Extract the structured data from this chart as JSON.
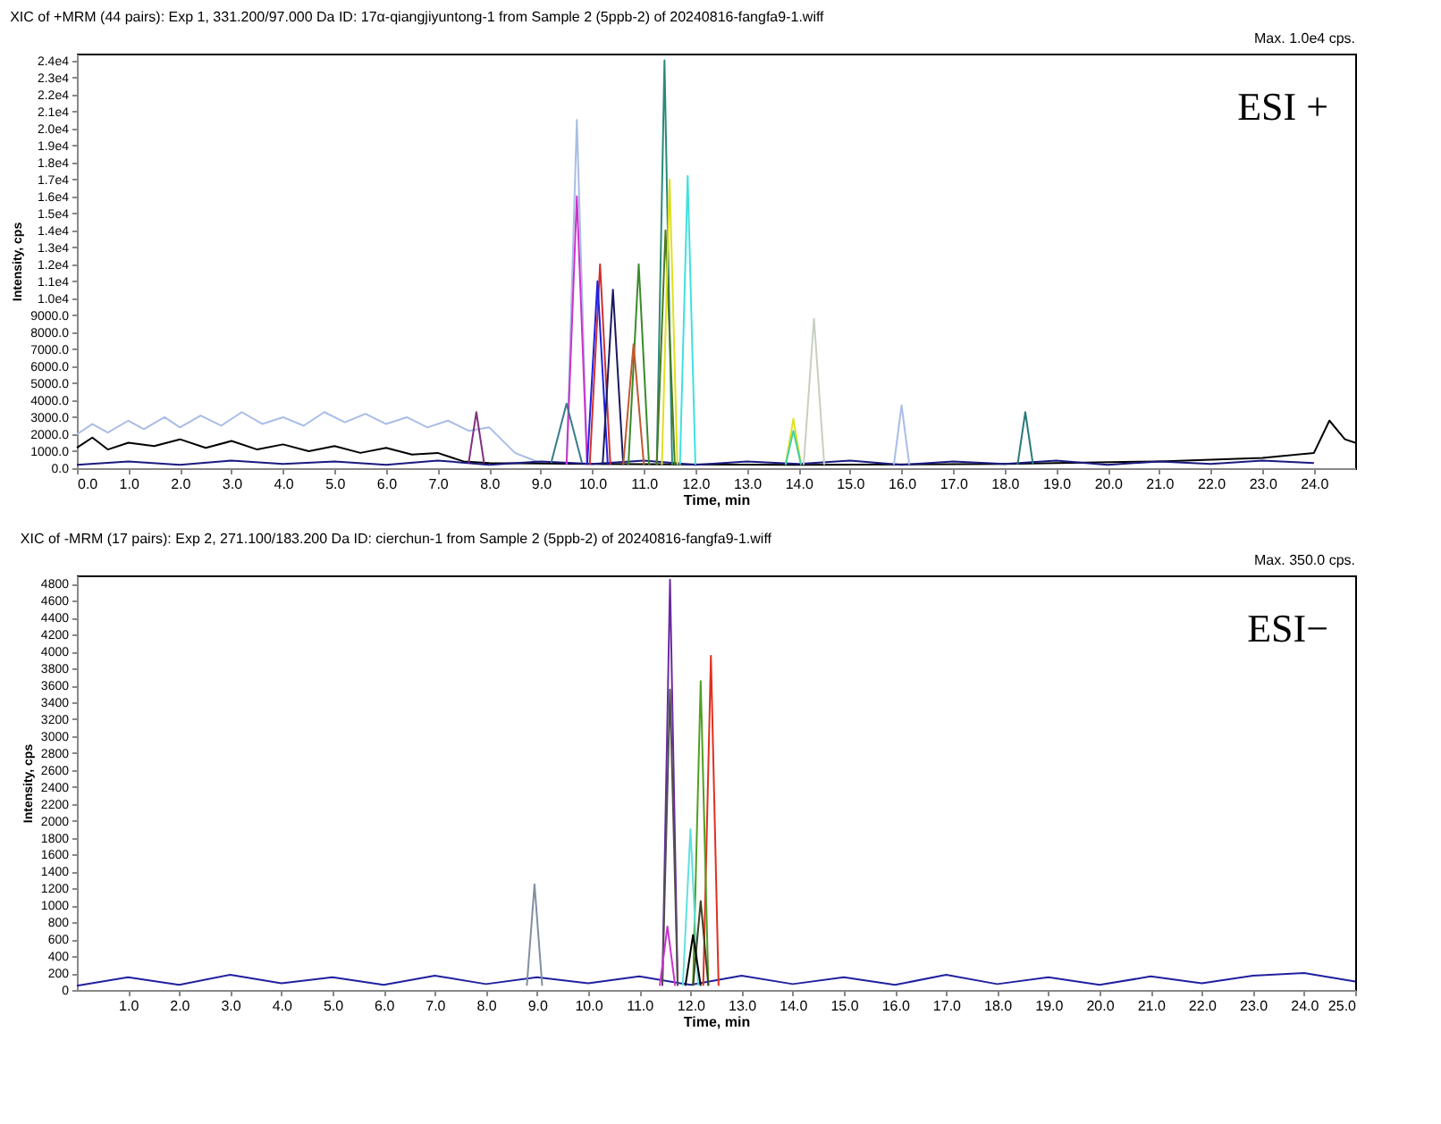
{
  "chart_data": [
    {
      "type": "line",
      "title": "XIC of +MRM (44 pairs): Exp 1, 331.200/97.000 Da ID: 17α-qiangjiyuntong-1 from Sample 2 (5ppb-2) of 20240816-fangfa9-1.wiff",
      "xlabel": "Time, min",
      "ylabel": "Intensity, cps",
      "annotations": [
        "Max. 1.0e4 cps.",
        "ESI +"
      ],
      "grid": false,
      "legend": false,
      "marker": "none",
      "line_style": "solid",
      "xlim": [
        0,
        24.8
      ],
      "ylim": [
        0,
        24400
      ],
      "xticks": [
        {
          "value": 0,
          "label": "0.0"
        },
        {
          "value": 1,
          "label": "1.0"
        },
        {
          "value": 2,
          "label": "2.0"
        },
        {
          "value": 3,
          "label": "3.0"
        },
        {
          "value": 4,
          "label": "4.0"
        },
        {
          "value": 5,
          "label": "5.0"
        },
        {
          "value": 6,
          "label": "6.0"
        },
        {
          "value": 7,
          "label": "7.0"
        },
        {
          "value": 8,
          "label": "8.0"
        },
        {
          "value": 9,
          "label": "9.0"
        },
        {
          "value": 10,
          "label": "10.0"
        },
        {
          "value": 11,
          "label": "11.0"
        },
        {
          "value": 12,
          "label": "12.0"
        },
        {
          "value": 13,
          "label": "13.0"
        },
        {
          "value": 14,
          "label": "14.0"
        },
        {
          "value": 15,
          "label": "15.0"
        },
        {
          "value": 16,
          "label": "16.0"
        },
        {
          "value": 17,
          "label": "17.0"
        },
        {
          "value": 18,
          "label": "18.0"
        },
        {
          "value": 19,
          "label": "19.0"
        },
        {
          "value": 20,
          "label": "20.0"
        },
        {
          "value": 21,
          "label": "21.0"
        },
        {
          "value": 22,
          "label": "22.0"
        },
        {
          "value": 23,
          "label": "23.0"
        },
        {
          "value": 24,
          "label": "24.0"
        }
      ],
      "yticks": [
        {
          "value": 0,
          "label": "0.0"
        },
        {
          "value": 1000,
          "label": "1000.0"
        },
        {
          "value": 2000,
          "label": "2000.0"
        },
        {
          "value": 3000,
          "label": "3000.0"
        },
        {
          "value": 4000,
          "label": "4000.0"
        },
        {
          "value": 5000,
          "label": "5000.0"
        },
        {
          "value": 6000,
          "label": "6000.0"
        },
        {
          "value": 7000,
          "label": "7000.0"
        },
        {
          "value": 8000,
          "label": "8000.0"
        },
        {
          "value": 9000,
          "label": "9000.0"
        },
        {
          "value": 10000,
          "label": "1.0e4"
        },
        {
          "value": 11000,
          "label": "1.1e4"
        },
        {
          "value": 12000,
          "label": "1.2e4"
        },
        {
          "value": 13000,
          "label": "1.3e4"
        },
        {
          "value": 14000,
          "label": "1.4e4"
        },
        {
          "value": 15000,
          "label": "1.5e4"
        },
        {
          "value": 16000,
          "label": "1.6e4"
        },
        {
          "value": 17000,
          "label": "1.7e4"
        },
        {
          "value": 18000,
          "label": "1.8e4"
        },
        {
          "value": 19000,
          "label": "1.9e4"
        },
        {
          "value": 20000,
          "label": "2.0e4"
        },
        {
          "value": 21000,
          "label": "2.1e4"
        },
        {
          "value": 22000,
          "label": "2.2e4"
        },
        {
          "value": 23000,
          "label": "2.3e4"
        },
        {
          "value": 24000,
          "label": "2.4e4"
        }
      ],
      "series": [
        {
          "color": "#a9bde6",
          "x": [
            0,
            0.3,
            0.6,
            1,
            1.3,
            1.7,
            2,
            2.4,
            2.8,
            3.2,
            3.6,
            4,
            4.4,
            4.8,
            5.2,
            5.6,
            6,
            6.4,
            6.8,
            7.2,
            7.6,
            8,
            8.5,
            9
          ],
          "values": [
            2000,
            2600,
            2100,
            2800,
            2300,
            3000,
            2400,
            3100,
            2500,
            3300,
            2600,
            3000,
            2500,
            3300,
            2700,
            3200,
            2600,
            3000,
            2400,
            2800,
            2200,
            2400,
            900,
            300
          ]
        },
        {
          "color": "#000000",
          "x": [
            0,
            0.3,
            0.6,
            1,
            1.5,
            2,
            2.5,
            3,
            3.5,
            4,
            4.5,
            5,
            5.5,
            6,
            6.5,
            7,
            7.5,
            8,
            10,
            14,
            18,
            21,
            23,
            24,
            24.3,
            24.6,
            24.8
          ],
          "values": [
            1200,
            1800,
            1100,
            1500,
            1300,
            1700,
            1200,
            1600,
            1100,
            1400,
            1000,
            1300,
            900,
            1200,
            800,
            900,
            400,
            300,
            250,
            200,
            250,
            400,
            600,
            900,
            2800,
            1700,
            1500
          ]
        },
        {
          "color": "#1a1a80",
          "x": [
            0,
            1,
            2,
            3,
            4,
            5,
            6,
            7,
            8,
            9,
            10,
            11,
            12,
            13,
            14,
            15,
            16,
            17,
            18,
            19,
            20,
            21,
            22,
            23,
            24
          ],
          "values": [
            200,
            400,
            200,
            450,
            250,
            400,
            200,
            450,
            200,
            400,
            250,
            450,
            200,
            400,
            250,
            450,
            200,
            400,
            250,
            450,
            200,
            400,
            250,
            450,
            300
          ]
        },
        {
          "color": "#a9bde6",
          "x": [
            9.5,
            9.7,
            9.9
          ],
          "values": [
            200,
            20500,
            200
          ]
        },
        {
          "color": "#cc33cc",
          "x": [
            9.5,
            9.7,
            9.9
          ],
          "values": [
            200,
            16000,
            200
          ]
        },
        {
          "color": "#d03030",
          "x": [
            9.95,
            10.15,
            10.35
          ],
          "values": [
            200,
            12000,
            200
          ]
        },
        {
          "color": "#2020e0",
          "x": [
            9.9,
            10.1,
            10.3
          ],
          "values": [
            200,
            11000,
            200
          ]
        },
        {
          "color": "#1a1a60",
          "x": [
            10.2,
            10.4,
            10.6
          ],
          "values": [
            200,
            10500,
            200
          ]
        },
        {
          "color": "#3a8a2a",
          "x": [
            10.7,
            10.9,
            11.1
          ],
          "values": [
            200,
            12000,
            200
          ]
        },
        {
          "color": "#c05a30",
          "x": [
            10.6,
            10.8,
            11.0
          ],
          "values": [
            200,
            7300,
            200
          ]
        },
        {
          "color": "#2a8a7a",
          "x": [
            11.25,
            11.4,
            11.55
          ],
          "values": [
            200,
            24000,
            200
          ]
        },
        {
          "color": "#4a7a20",
          "x": [
            11.25,
            11.42,
            11.6
          ],
          "values": [
            200,
            14000,
            200
          ]
        },
        {
          "color": "#e0e020",
          "x": [
            11.35,
            11.5,
            11.65
          ],
          "values": [
            200,
            17000,
            200
          ]
        },
        {
          "color": "#40e0e0",
          "x": [
            11.7,
            11.85,
            12.0
          ],
          "values": [
            200,
            17200,
            200
          ]
        },
        {
          "color": "#c8d0c0",
          "x": [
            14.1,
            14.3,
            14.5
          ],
          "values": [
            200,
            8800,
            200
          ]
        },
        {
          "color": "#e0e020",
          "x": [
            13.75,
            13.9,
            14.05
          ],
          "values": [
            200,
            2900,
            200
          ]
        },
        {
          "color": "#40d0a0",
          "x": [
            13.75,
            13.9,
            14.05
          ],
          "values": [
            200,
            2200,
            200
          ]
        },
        {
          "color": "#a9bde6",
          "x": [
            15.85,
            16.0,
            16.15
          ],
          "values": [
            200,
            3700,
            200
          ]
        },
        {
          "color": "#2a7a7a",
          "x": [
            18.25,
            18.4,
            18.55
          ],
          "values": [
            200,
            3300,
            200
          ]
        },
        {
          "color": "#803080",
          "x": [
            7.6,
            7.75,
            7.9
          ],
          "values": [
            300,
            3300,
            300
          ]
        },
        {
          "color": "#3a7a8a",
          "x": [
            9.2,
            9.5,
            9.8
          ],
          "values": [
            300,
            3800,
            300
          ]
        }
      ]
    },
    {
      "type": "line",
      "title": "XIC of -MRM (17 pairs): Exp 2, 271.100/183.200 Da ID: cierchun-1 from Sample 2 (5ppb-2) of 20240816-fangfa9-1.wiff",
      "xlabel": "Time, min",
      "ylabel": "Intensity, cps",
      "annotations": [
        "Max. 350.0 cps.",
        "ESI−"
      ],
      "grid": false,
      "legend": false,
      "marker": "none",
      "line_style": "solid",
      "xlim": [
        0,
        25.0
      ],
      "ylim": [
        0,
        4900
      ],
      "xticks": [
        {
          "value": 1,
          "label": "1.0"
        },
        {
          "value": 2,
          "label": "2.0"
        },
        {
          "value": 3,
          "label": "3.0"
        },
        {
          "value": 4,
          "label": "4.0"
        },
        {
          "value": 5,
          "label": "5.0"
        },
        {
          "value": 6,
          "label": "6.0"
        },
        {
          "value": 7,
          "label": "7.0"
        },
        {
          "value": 8,
          "label": "8.0"
        },
        {
          "value": 9,
          "label": "9.0"
        },
        {
          "value": 10,
          "label": "10.0"
        },
        {
          "value": 11,
          "label": "11.0"
        },
        {
          "value": 12,
          "label": "12.0"
        },
        {
          "value": 13,
          "label": "13.0"
        },
        {
          "value": 14,
          "label": "14.0"
        },
        {
          "value": 15,
          "label": "15.0"
        },
        {
          "value": 16,
          "label": "16.0"
        },
        {
          "value": 17,
          "label": "17.0"
        },
        {
          "value": 18,
          "label": "18.0"
        },
        {
          "value": 19,
          "label": "19.0"
        },
        {
          "value": 20,
          "label": "20.0"
        },
        {
          "value": 21,
          "label": "21.0"
        },
        {
          "value": 22,
          "label": "22.0"
        },
        {
          "value": 23,
          "label": "23.0"
        },
        {
          "value": 24,
          "label": "24.0"
        },
        {
          "value": 25,
          "label": "25.0"
        }
      ],
      "yticks": [
        0,
        200,
        400,
        600,
        800,
        1000,
        1200,
        1400,
        1600,
        1800,
        2000,
        2200,
        2400,
        2600,
        2800,
        3000,
        3200,
        3400,
        3600,
        3800,
        4000,
        4200,
        4400,
        4600,
        4800
      ],
      "series": [
        {
          "color": "#2020a0",
          "x": [
            0,
            1,
            2,
            3,
            4,
            5,
            6,
            7,
            8,
            9,
            10,
            11,
            12,
            13,
            14,
            15,
            16,
            17,
            18,
            19,
            20,
            21,
            22,
            23,
            24,
            25
          ],
          "values": [
            50,
            150,
            60,
            180,
            80,
            150,
            60,
            170,
            70,
            150,
            80,
            160,
            60,
            170,
            70,
            150,
            60,
            180,
            70,
            150,
            60,
            160,
            80,
            170,
            200,
            100
          ]
        },
        {
          "color": "#6a2aa0",
          "x": [
            11.45,
            11.6,
            11.75
          ],
          "values": [
            50,
            4850,
            50
          ]
        },
        {
          "color": "#505050",
          "x": [
            11.45,
            11.6,
            11.75
          ],
          "values": [
            50,
            3550,
            50
          ]
        },
        {
          "color": "#e03020",
          "x": [
            12.25,
            12.4,
            12.55
          ],
          "values": [
            50,
            3950,
            50
          ]
        },
        {
          "color": "#50a020",
          "x": [
            12.05,
            12.2,
            12.35
          ],
          "values": [
            50,
            3650,
            50
          ]
        },
        {
          "color": "#60e0e0",
          "x": [
            11.85,
            12.0,
            12.15
          ],
          "values": [
            50,
            1900,
            50
          ]
        },
        {
          "color": "#404020",
          "x": [
            12.05,
            12.2,
            12.35
          ],
          "values": [
            50,
            1050,
            50
          ]
        },
        {
          "color": "#000000",
          "x": [
            11.9,
            12.05,
            12.2
          ],
          "values": [
            50,
            650,
            50
          ]
        },
        {
          "color": "#cc33cc",
          "x": [
            11.4,
            11.55,
            11.7
          ],
          "values": [
            50,
            750,
            50
          ]
        },
        {
          "color": "#8090a0",
          "x": [
            8.8,
            8.95,
            9.1
          ],
          "values": [
            50,
            1250,
            50
          ]
        }
      ]
    }
  ]
}
